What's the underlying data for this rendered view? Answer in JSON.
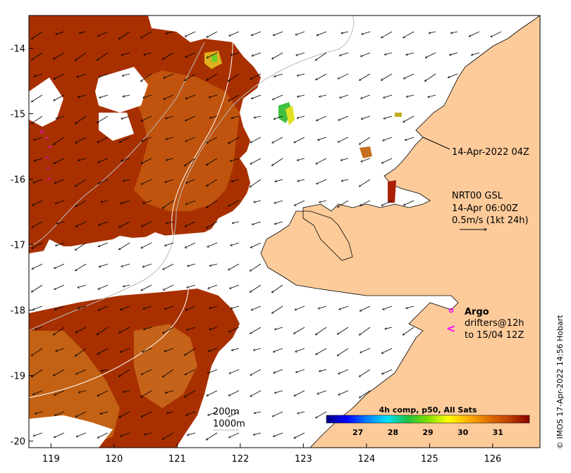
{
  "map": {
    "lon_ticks": [
      "119",
      "120",
      "121",
      "122",
      "123",
      "124",
      "125",
      "126"
    ],
    "lat_ticks": [
      "-14",
      "-15",
      "-16",
      "-17",
      "-18",
      "-19",
      "-20"
    ],
    "lon_range": [
      118.65,
      126.75
    ],
    "lat_range": [
      -20.1,
      -13.5
    ]
  },
  "annotations": {
    "sst_time": "14-Apr-2022 04Z",
    "current_product": "NRT00 GSL",
    "current_time": "14-Apr 06:00Z",
    "current_scale": "0.5m/s (1kt 24h)",
    "argo_label": "Argo",
    "drifters_line1": "drifters@12h",
    "drifters_line2": "to 15/04 12Z",
    "contour_200": "200m",
    "contour_1000": "1000m"
  },
  "colorbar": {
    "title": "4h comp, p50, All Sats",
    "tick_labels": [
      "27",
      "28",
      "29",
      "30",
      "31"
    ],
    "tick_values": [
      27,
      28,
      29,
      30,
      31
    ],
    "range": [
      26.1,
      31.9
    ],
    "colors": [
      "#00007f",
      "#0000ff",
      "#0080ff",
      "#00e0ff",
      "#20c040",
      "#80e000",
      "#ffff00",
      "#ffb000",
      "#e07000",
      "#c04000",
      "#8b0000"
    ]
  },
  "credit": "© IMOS 17-Apr-2022 14:56 Hobart",
  "colors": {
    "land": "#fdcb9a",
    "nodata": "#ffffff",
    "sst_warm": "#b43a00",
    "sst_mid": "#cc6a10",
    "drifter": "#ff00ff"
  }
}
